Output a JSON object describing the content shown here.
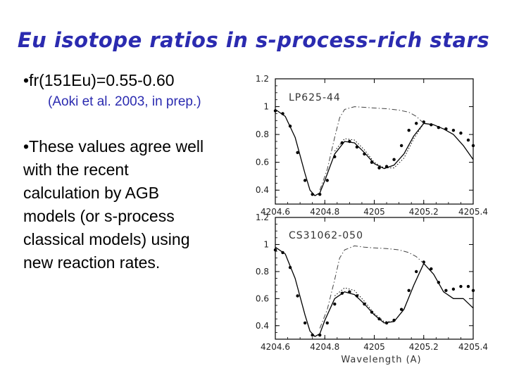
{
  "title": "Eu isotope ratios in s-process-rich stars",
  "bullets": {
    "first": "•fr(151Eu)=0.55-0.60",
    "first_ref": "(Aoki et al. 2003, in prep.)",
    "second_lines": [
      "•These values agree well",
      "with the recent",
      "calculation by AGB",
      "models (or s-process",
      "classical models) using",
      "new reaction rates."
    ]
  },
  "chart_data": [
    {
      "type": "line",
      "label": "LP625-44",
      "xlim": [
        4204.6,
        4205.4
      ],
      "ylim": [
        0.3,
        1.2
      ],
      "xticks": [
        4204.6,
        4204.8,
        4205,
        4205.2,
        4205.4
      ],
      "xtick_labels": [
        "4204.6",
        "4204.8",
        "4205",
        "4205.2",
        "4205.4"
      ],
      "yticks": [
        0.4,
        0.6,
        0.8,
        1,
        1.2
      ],
      "ytick_labels": [
        "0.4",
        "0.6",
        "0.8",
        "1",
        "1.2"
      ],
      "xlabel": "",
      "series": [
        {
          "style": "solid",
          "x": [
            4204.6,
            4204.64,
            4204.68,
            4204.72,
            4204.74,
            4204.76,
            4204.78,
            4204.8,
            4204.84,
            4204.88,
            4204.92,
            4204.96,
            4205.0,
            4205.04,
            4205.08,
            4205.12,
            4205.16,
            4205.2,
            4205.24,
            4205.28,
            4205.32,
            4205.36,
            4205.4
          ],
          "y": [
            0.98,
            0.93,
            0.78,
            0.52,
            0.4,
            0.36,
            0.38,
            0.47,
            0.66,
            0.75,
            0.74,
            0.67,
            0.59,
            0.555,
            0.58,
            0.66,
            0.79,
            0.88,
            0.87,
            0.84,
            0.8,
            0.72,
            0.62
          ]
        },
        {
          "style": "dots",
          "x": [
            4204.6,
            4204.63,
            4204.66,
            4204.69,
            4204.72,
            4204.75,
            4204.78,
            4204.81,
            4204.84,
            4204.87,
            4204.9,
            4204.93,
            4204.96,
            4204.99,
            4205.02,
            4205.05,
            4205.08,
            4205.11,
            4205.14,
            4205.17,
            4205.2,
            4205.23,
            4205.26,
            4205.29,
            4205.32,
            4205.35,
            4205.38,
            4205.4
          ],
          "y": [
            0.97,
            0.95,
            0.86,
            0.67,
            0.47,
            0.37,
            0.37,
            0.47,
            0.64,
            0.74,
            0.75,
            0.71,
            0.66,
            0.6,
            0.56,
            0.57,
            0.62,
            0.72,
            0.83,
            0.88,
            0.89,
            0.87,
            0.85,
            0.84,
            0.83,
            0.81,
            0.76,
            0.72
          ]
        },
        {
          "style": "dotted",
          "x": [
            4204.84,
            4204.88,
            4204.92,
            4204.96,
            4205.0,
            4205.04,
            4205.08,
            4205.12,
            4205.16,
            4205.2
          ],
          "y": [
            0.68,
            0.77,
            0.76,
            0.69,
            0.6,
            0.56,
            0.56,
            0.63,
            0.77,
            0.88
          ]
        },
        {
          "style": "dashdot",
          "x": [
            4204.78,
            4204.81,
            4204.84,
            4204.86,
            4204.88,
            4204.92,
            4204.96,
            4205.0,
            4205.05,
            4205.1,
            4205.14,
            4205.17,
            4205.2
          ],
          "y": [
            0.4,
            0.55,
            0.78,
            0.92,
            0.98,
            1.0,
            0.995,
            0.99,
            0.985,
            0.975,
            0.96,
            0.93,
            0.88
          ]
        }
      ]
    },
    {
      "type": "line",
      "label": "CS31062-050",
      "xlim": [
        4204.6,
        4205.4
      ],
      "ylim": [
        0.3,
        1.2
      ],
      "xticks": [
        4204.6,
        4204.8,
        4205,
        4205.2,
        4205.4
      ],
      "xtick_labels": [
        "4204.6",
        "4204.8",
        "4205",
        "4205.2",
        "4205.4"
      ],
      "yticks": [
        0.4,
        0.6,
        0.8,
        1,
        1.2
      ],
      "ytick_labels": [
        "0.4",
        "0.6",
        "0.8",
        "1",
        "1.2"
      ],
      "xlabel": "Wavelength (A)",
      "series": [
        {
          "style": "solid",
          "x": [
            4204.6,
            4204.64,
            4204.68,
            4204.72,
            4204.74,
            4204.76,
            4204.78,
            4204.8,
            4204.84,
            4204.88,
            4204.92,
            4204.96,
            4205.0,
            4205.04,
            4205.08,
            4205.12,
            4205.16,
            4205.2,
            4205.24,
            4205.28,
            4205.32,
            4205.36,
            4205.4
          ],
          "y": [
            0.98,
            0.93,
            0.75,
            0.48,
            0.36,
            0.32,
            0.34,
            0.44,
            0.6,
            0.65,
            0.63,
            0.56,
            0.48,
            0.42,
            0.43,
            0.52,
            0.7,
            0.86,
            0.78,
            0.65,
            0.6,
            0.6,
            0.53
          ]
        },
        {
          "style": "dots",
          "x": [
            4204.6,
            4204.63,
            4204.66,
            4204.69,
            4204.72,
            4204.75,
            4204.78,
            4204.81,
            4204.84,
            4204.87,
            4204.9,
            4204.93,
            4204.96,
            4204.99,
            4205.02,
            4205.05,
            4205.08,
            4205.11,
            4205.14,
            4205.17,
            4205.2,
            4205.23,
            4205.26,
            4205.29,
            4205.32,
            4205.35,
            4205.38,
            4205.4
          ],
          "y": [
            0.96,
            0.94,
            0.83,
            0.62,
            0.42,
            0.33,
            0.33,
            0.42,
            0.56,
            0.64,
            0.65,
            0.62,
            0.56,
            0.5,
            0.45,
            0.42,
            0.44,
            0.52,
            0.66,
            0.8,
            0.87,
            0.82,
            0.72,
            0.66,
            0.67,
            0.69,
            0.69,
            0.66
          ]
        },
        {
          "style": "dotted",
          "x": [
            4204.84,
            4204.88,
            4204.92,
            4204.96,
            4205.0,
            4205.04,
            4205.08,
            4205.12,
            4205.16,
            4205.2
          ],
          "y": [
            0.62,
            0.68,
            0.66,
            0.58,
            0.49,
            0.43,
            0.43,
            0.52,
            0.7,
            0.86
          ]
        },
        {
          "style": "dashdot",
          "x": [
            4204.78,
            4204.81,
            4204.84,
            4204.86,
            4204.88,
            4204.92,
            4204.96,
            4205.0,
            4205.05,
            4205.1,
            4205.14,
            4205.17,
            4205.2
          ],
          "y": [
            0.38,
            0.52,
            0.74,
            0.9,
            0.96,
            0.99,
            0.98,
            0.975,
            0.97,
            0.96,
            0.94,
            0.91,
            0.86
          ]
        }
      ]
    }
  ]
}
